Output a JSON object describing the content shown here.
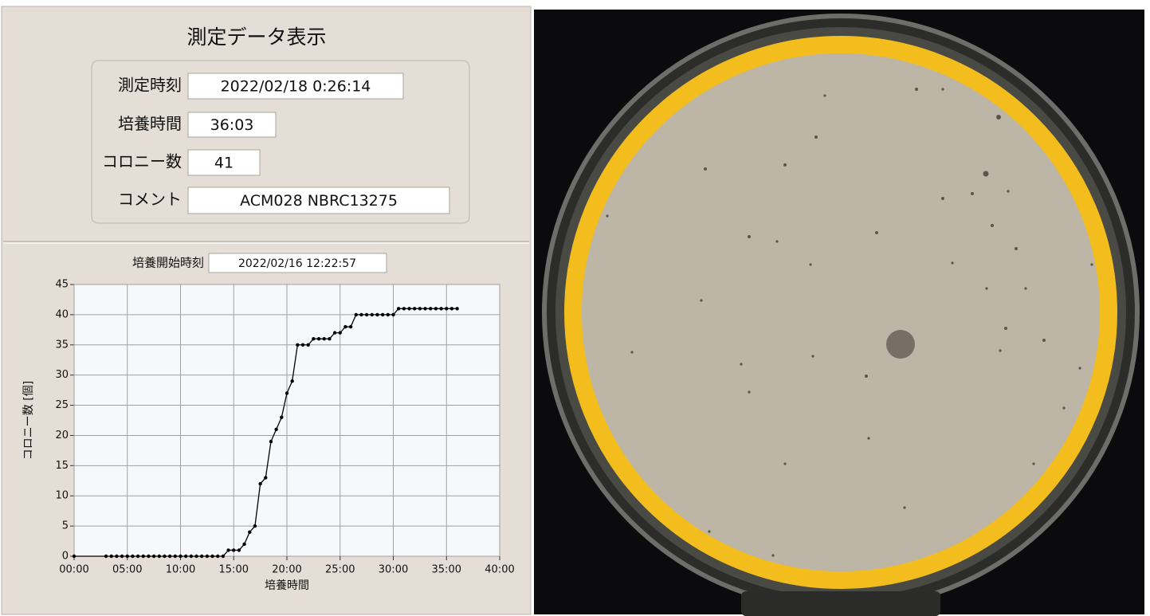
{
  "panel": {
    "title": "測定データ表示",
    "fields": [
      {
        "label": "測定時刻",
        "value": "2022/02/18 0:26:14"
      },
      {
        "label": "培養時間",
        "value": "36:03"
      },
      {
        "label": "コロニー数",
        "value": "41"
      },
      {
        "label": "コメント",
        "value": "ACM028 NBRC13275"
      }
    ]
  },
  "start_time": {
    "label": "培養開始時刻",
    "value": "2022/02/16 12:22:57"
  },
  "chart_data": {
    "type": "line",
    "x_label": "培養時間",
    "y_label": "コロニー数 [個]",
    "x": [
      0,
      3,
      3.5,
      4,
      4.5,
      5,
      5.5,
      6,
      6.5,
      7,
      7.5,
      8,
      8.5,
      9,
      9.5,
      10,
      10.5,
      11,
      11.5,
      12,
      12.5,
      13,
      13.5,
      14,
      14.5,
      15,
      15.5,
      16,
      16.5,
      17,
      17.5,
      18,
      18.5,
      19,
      19.5,
      20,
      20.5,
      21,
      21.5,
      22,
      22.5,
      23,
      23.5,
      24,
      24.5,
      25,
      25.5,
      26,
      26.5,
      27,
      27.5,
      28,
      28.5,
      29,
      29.5,
      30,
      30.5,
      31,
      31.5,
      32,
      32.5,
      33,
      33.5,
      34,
      34.5,
      35,
      35.5,
      36
    ],
    "values": [
      0,
      0,
      0,
      0,
      0,
      0,
      0,
      0,
      0,
      0,
      0,
      0,
      0,
      0,
      0,
      0,
      0,
      0,
      0,
      0,
      0,
      0,
      0,
      0,
      1,
      1,
      1,
      2,
      4,
      5,
      12,
      13,
      19,
      21,
      23,
      27,
      29,
      35,
      35,
      35,
      36,
      36,
      36,
      36,
      37,
      37,
      38,
      38,
      40,
      40,
      40,
      40,
      40,
      40,
      40,
      40,
      41,
      41,
      41,
      41,
      41,
      41,
      41,
      41,
      41,
      41,
      41,
      41
    ],
    "color": "#000000",
    "xlim": [
      0,
      40
    ],
    "xticks": [
      {
        "value": 0,
        "label": "00:00"
      },
      {
        "value": 5,
        "label": "05:00"
      },
      {
        "value": 10,
        "label": "10:00"
      },
      {
        "value": 15,
        "label": "15:00"
      },
      {
        "value": 20,
        "label": "20:00"
      },
      {
        "value": 25,
        "label": "25:00"
      },
      {
        "value": 30,
        "label": "30:00"
      },
      {
        "value": 35,
        "label": "35:00"
      },
      {
        "value": 40,
        "label": "40:00"
      }
    ],
    "ylim": [
      0,
      45
    ],
    "yticks": [
      0,
      5,
      10,
      15,
      20,
      25,
      30,
      35,
      40,
      45
    ],
    "grid": true
  }
}
